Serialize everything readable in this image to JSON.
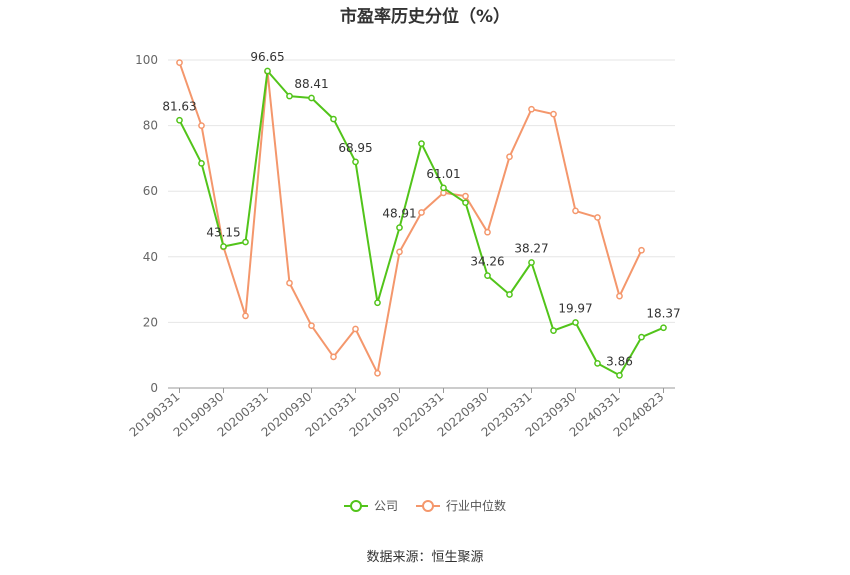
{
  "chart_data": {
    "type": "line",
    "title": "市盈率历史分位（%）",
    "source": "数据来源：恒生聚源",
    "ylim": [
      0,
      100
    ],
    "yticks": [
      0,
      20,
      40,
      60,
      80,
      100
    ],
    "tick_labels": [
      "20190331",
      "20190930",
      "20200331",
      "20200930",
      "20210331",
      "20210930",
      "20220331",
      "20220930",
      "20230331",
      "20230930",
      "20240331",
      "20240823"
    ],
    "tick_indices": [
      0,
      2,
      4,
      6,
      8,
      10,
      12,
      14,
      16,
      18,
      20,
      22
    ],
    "grid": true,
    "legend_position": "bottom",
    "series": [
      {
        "name": "公司",
        "color": "#52c41a",
        "values": [
          81.63,
          68.5,
          43.15,
          44.5,
          96.65,
          89.0,
          88.41,
          82.0,
          68.95,
          26.0,
          48.91,
          74.5,
          61.01,
          56.5,
          34.26,
          28.5,
          38.27,
          17.5,
          19.97,
          7.5,
          3.86,
          15.5,
          18.37
        ],
        "labels": {
          "0": "81.63",
          "2": "43.15",
          "4": "96.65",
          "6": "88.41",
          "8": "68.95",
          "10": "48.91",
          "12": "61.01",
          "14": "34.26",
          "16": "38.27",
          "18": "19.97",
          "20": "3.86",
          "22": "18.37"
        }
      },
      {
        "name": "行业中位数",
        "color": "#f4976c",
        "values": [
          99.2,
          80.0,
          43.0,
          22.0,
          96.5,
          32.0,
          19.0,
          9.5,
          18.0,
          4.5,
          41.5,
          53.5,
          59.5,
          58.5,
          47.5,
          70.5,
          85.0,
          83.5,
          54.0,
          52.0,
          28.0,
          42.0,
          null
        ]
      }
    ]
  }
}
